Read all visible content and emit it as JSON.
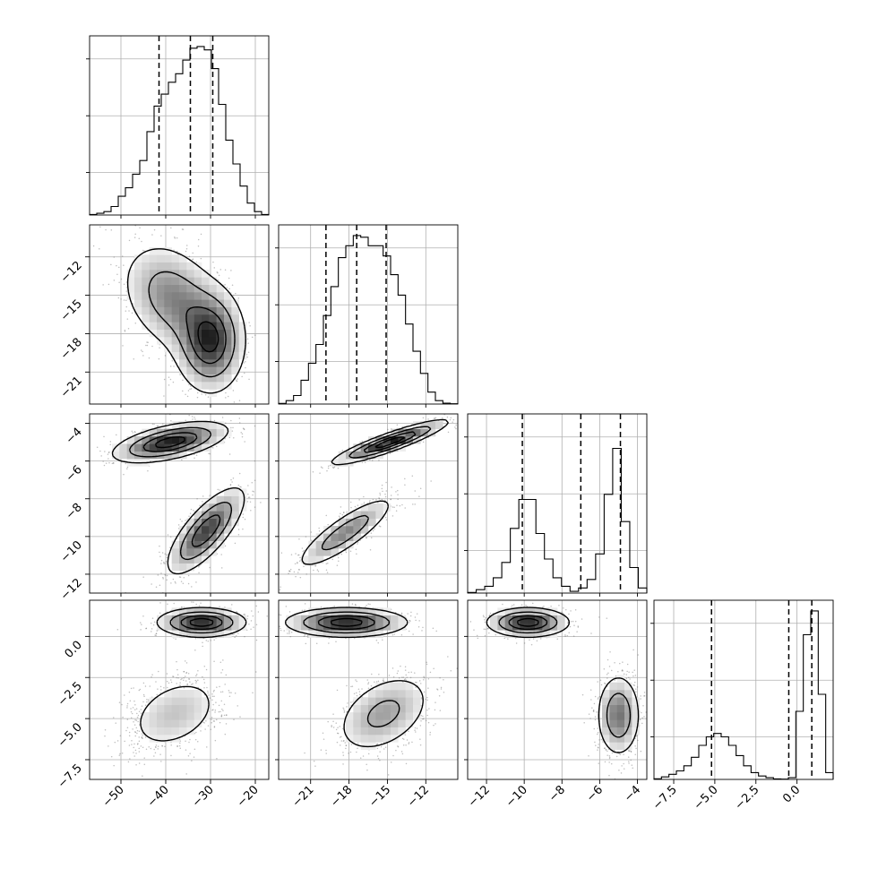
{
  "chart_data": {
    "type": "corner",
    "parameters": [
      {
        "range": [
          -57,
          -17
        ],
        "ticks": [
          -50,
          -40,
          -30,
          -20
        ],
        "tick_labels": [
          "−50",
          "−40",
          "−30",
          "−20"
        ],
        "quantiles": [
          -41.5,
          -34.5,
          -29.5
        ],
        "hist_bins": [
          0.003,
          0.01,
          0.02,
          0.05,
          0.11,
          0.16,
          0.24,
          0.32,
          0.49,
          0.64,
          0.71,
          0.78,
          0.83,
          0.91,
          0.98,
          0.99,
          0.97,
          0.86,
          0.65,
          0.44,
          0.3,
          0.17,
          0.07,
          0.02,
          0.003
        ]
      },
      {
        "range": [
          -23.5,
          -9.5
        ],
        "ticks": [
          -21,
          -18,
          -15,
          -12
        ],
        "tick_labels": [
          "−21",
          "−18",
          "−15",
          "−12"
        ],
        "quantiles": [
          -19.8,
          -17.4,
          -15.1
        ],
        "hist_bins": [
          0.004,
          0.02,
          0.05,
          0.14,
          0.24,
          0.35,
          0.52,
          0.69,
          0.86,
          0.93,
          0.99,
          0.98,
          0.93,
          0.93,
          0.87,
          0.76,
          0.64,
          0.47,
          0.31,
          0.18,
          0.07,
          0.02,
          0.005,
          0.002
        ]
      },
      {
        "range": [
          -13,
          -3.5
        ],
        "ticks": [
          -12,
          -10,
          -8,
          -6,
          -4
        ],
        "tick_labels": [
          "−12",
          "−10",
          "−8",
          "−6",
          "−4"
        ],
        "quantiles": [
          -10.1,
          -7.0,
          -4.9
        ],
        "hist_bins": [
          0.004,
          0.02,
          0.04,
          0.09,
          0.18,
          0.38,
          0.55,
          0.55,
          0.35,
          0.2,
          0.09,
          0.04,
          0.01,
          0.03,
          0.08,
          0.23,
          0.58,
          0.85,
          0.42,
          0.15,
          0.03
        ]
      },
      {
        "range": [
          -8.7,
          2.2
        ],
        "ticks": [
          -7.5,
          -5.0,
          -2.5,
          0.0
        ],
        "tick_labels": [
          "−7.5",
          "−5.0",
          "−2.5",
          "0.0"
        ],
        "quantiles": [
          -5.2,
          -0.5,
          0.9
        ],
        "hist_bins": [
          0.004,
          0.015,
          0.03,
          0.05,
          0.08,
          0.13,
          0.2,
          0.25,
          0.27,
          0.25,
          0.2,
          0.14,
          0.08,
          0.04,
          0.02,
          0.01,
          0.003,
          0.002,
          0.01,
          0.4,
          0.85,
          0.99,
          0.5,
          0.04
        ]
      }
    ],
    "pairs": [
      {
        "x": 0,
        "y": 1,
        "modes": [
          {
            "mean": [
              -38.5,
              -15.2
            ],
            "sd": [
              6.0,
              2.3
            ],
            "rho": -0.3,
            "weight": 0.5
          },
          {
            "mean": [
              -30.0,
              -18.6
            ],
            "sd": [
              4.0,
              2.1
            ],
            "rho": 0.0,
            "weight": 0.5
          }
        ]
      },
      {
        "x": 0,
        "y": 2,
        "modes": [
          {
            "mean": [
              -39.0,
              -5.0
            ],
            "sd": [
              6.5,
              0.55
            ],
            "rho": 0.55,
            "weight": 0.5
          },
          {
            "mean": [
              -31.0,
              -9.7
            ],
            "sd": [
              4.5,
              1.2
            ],
            "rho": 0.75,
            "weight": 0.5
          }
        ]
      },
      {
        "x": 1,
        "y": 2,
        "modes": [
          {
            "mean": [
              -14.8,
              -5.0
            ],
            "sd": [
              2.3,
              0.6
            ],
            "rho": 0.9,
            "weight": 0.5
          },
          {
            "mean": [
              -18.3,
              -9.8
            ],
            "sd": [
              2.0,
              1.0
            ],
            "rho": 0.85,
            "weight": 0.5
          }
        ]
      },
      {
        "x": 0,
        "y": 3,
        "modes": [
          {
            "mean": [
              -32.0,
              0.85
            ],
            "sd": [
              5.0,
              0.45
            ],
            "rho": 0.0,
            "weight": 0.5
          },
          {
            "mean": [
              -38.0,
              -4.7
            ],
            "sd": [
              6.0,
              1.3
            ],
            "rho": 0.35,
            "weight": 0.5
          }
        ]
      },
      {
        "x": 1,
        "y": 3,
        "modes": [
          {
            "mean": [
              -18.2,
              0.85
            ],
            "sd": [
              2.4,
              0.45
            ],
            "rho": 0.0,
            "weight": 0.5
          },
          {
            "mean": [
              -15.3,
              -4.7
            ],
            "sd": [
              2.0,
              1.3
            ],
            "rho": 0.4,
            "weight": 0.5
          }
        ]
      },
      {
        "x": 2,
        "y": 3,
        "modes": [
          {
            "mean": [
              -9.8,
              0.85
            ],
            "sd": [
              1.1,
              0.45
            ],
            "rho": 0.0,
            "weight": 0.5
          },
          {
            "mean": [
              -5.0,
              -4.8
            ],
            "sd": [
              0.6,
              1.3
            ],
            "rho": 0.0,
            "weight": 0.5
          }
        ]
      }
    ]
  }
}
